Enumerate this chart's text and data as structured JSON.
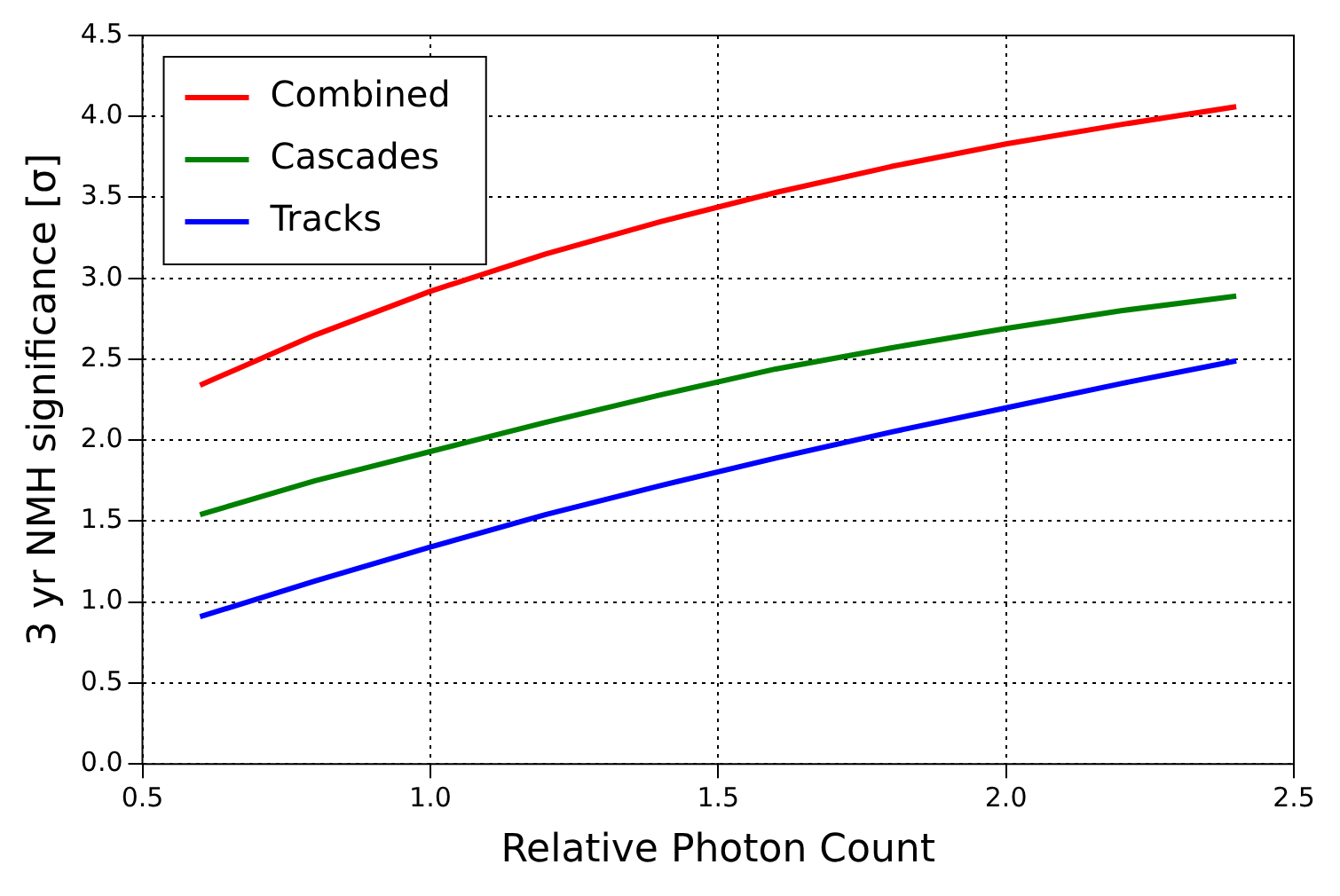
{
  "chart_data": {
    "type": "line",
    "xlabel": "Relative Photon Count",
    "ylabel": "3 yr NMH significance [σ]",
    "x": [
      0.6,
      0.8,
      1.0,
      1.2,
      1.4,
      1.6,
      1.8,
      2.0,
      2.2,
      2.4
    ],
    "series": [
      {
        "name": "Combined",
        "color": "#ff0000",
        "values": [
          2.34,
          2.65,
          2.92,
          3.15,
          3.35,
          3.53,
          3.69,
          3.83,
          3.95,
          4.06
        ]
      },
      {
        "name": "Cascades",
        "color": "#008000",
        "values": [
          1.54,
          1.75,
          1.93,
          2.11,
          2.28,
          2.44,
          2.57,
          2.69,
          2.8,
          2.89
        ]
      },
      {
        "name": "Tracks",
        "color": "#0000ff",
        "values": [
          0.91,
          1.13,
          1.34,
          1.54,
          1.72,
          1.89,
          2.05,
          2.2,
          2.35,
          2.49
        ]
      }
    ],
    "xlim": [
      0.5,
      2.5
    ],
    "xticks": [
      0.5,
      {
        "value": 1,
        "label": "1.0"
      },
      1.5,
      {
        "value": 2,
        "label": "2.0"
      },
      2.5
    ],
    "ylim": [
      0,
      4.5
    ],
    "yticks": [
      {
        "value": 0,
        "label": "0.0"
      },
      0.5,
      {
        "value": 1,
        "label": "1.0"
      },
      1.5,
      {
        "value": 2,
        "label": "2.0"
      },
      2.5,
      {
        "value": 3,
        "label": "3.0"
      },
      3.5,
      {
        "value": 4,
        "label": "4.0"
      },
      4.5
    ],
    "grid": true,
    "legend": "top left",
    "marker": "none",
    "line_style": "solid"
  }
}
